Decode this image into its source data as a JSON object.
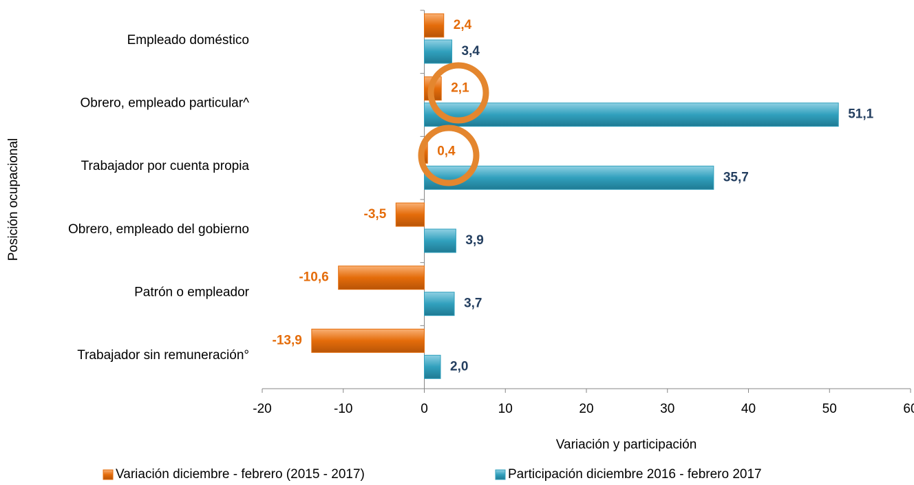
{
  "chart_data": {
    "type": "bar",
    "orientation": "horizontal",
    "xlabel": "Variación y participación",
    "ylabel": "Posición ocupacional",
    "categories": [
      "Empleado doméstico",
      "Obrero, empleado particular^",
      "Trabajador por cuenta propia",
      "Obrero, empleado del gobierno",
      "Patrón o empleador",
      "Trabajador sin remuneración°"
    ],
    "series": [
      {
        "name": "Variación diciembre - febrero (2015 - 2017)",
        "color": "#e46c0a",
        "values": [
          2.4,
          2.1,
          0.4,
          -3.5,
          -10.6,
          -13.9
        ],
        "value_labels": [
          "2,4",
          "2,1",
          "0,4",
          "-3,5",
          "-10,6",
          "-13,9"
        ]
      },
      {
        "name": "Participación diciembre 2016 - febrero 2017",
        "color": "#31a0bd",
        "values": [
          3.4,
          51.1,
          35.7,
          3.9,
          3.7,
          2.0
        ],
        "value_labels": [
          "3,4",
          "51,1",
          "35,7",
          "3,9",
          "3,7",
          "2,0"
        ]
      }
    ],
    "xlim": [
      -20,
      60
    ],
    "xticks": [
      -20,
      -10,
      0,
      10,
      20,
      30,
      40,
      50,
      60
    ],
    "legend": "bottom"
  }
}
